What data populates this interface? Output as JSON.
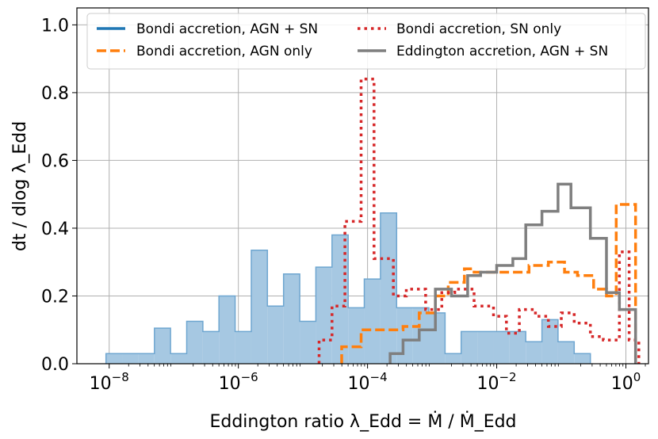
{
  "chart_data": {
    "type": "histogram-step",
    "xlabel": "Eddington ratio λ_Edd = Ṁ / Ṁ_Edd",
    "ylabel": "dt / dlog λ_Edd",
    "xscale": "log",
    "xlim_log10": [
      -8.5,
      0.35
    ],
    "ylim": [
      0,
      1.05
    ],
    "grid": true,
    "legend": "top",
    "x_ticks": [
      {
        "log10": -8,
        "base": "10",
        "exp": "−8"
      },
      {
        "log10": -6,
        "base": "10",
        "exp": "−6"
      },
      {
        "log10": -4,
        "base": "10",
        "exp": "−4"
      },
      {
        "log10": -2,
        "base": "10",
        "exp": "−2"
      },
      {
        "log10": 0,
        "base": "10",
        "exp": "0"
      }
    ],
    "y_ticks": [
      "0.0",
      "0.2",
      "0.4",
      "0.6",
      "0.8",
      "1.0"
    ],
    "y_tick_values": [
      0,
      0.2,
      0.4,
      0.6,
      0.8,
      1.0
    ],
    "series": [
      {
        "name": "Bondi accretion, AGN + SN",
        "style": "filled",
        "color": "#1f77b4",
        "fill": "#a6c8e2",
        "edge": "#6ea6d0",
        "bins": [
          [
            -8.05,
            -7.8,
            0.03
          ],
          [
            -7.8,
            -7.55,
            0.03
          ],
          [
            -7.55,
            -7.3,
            0.03
          ],
          [
            -7.3,
            -7.05,
            0.105
          ],
          [
            -7.05,
            -6.8,
            0.03
          ],
          [
            -6.8,
            -6.55,
            0.125
          ],
          [
            -6.55,
            -6.3,
            0.095
          ],
          [
            -6.3,
            -6.05,
            0.2
          ],
          [
            -6.05,
            -5.8,
            0.095
          ],
          [
            -5.8,
            -5.55,
            0.335
          ],
          [
            -5.55,
            -5.3,
            0.17
          ],
          [
            -5.3,
            -5.05,
            0.265
          ],
          [
            -5.05,
            -4.8,
            0.125
          ],
          [
            -4.8,
            -4.55,
            0.285
          ],
          [
            -4.55,
            -4.3,
            0.38
          ],
          [
            -4.3,
            -4.05,
            0.165
          ],
          [
            -4.05,
            -3.8,
            0.25
          ],
          [
            -3.8,
            -3.55,
            0.445
          ],
          [
            -3.55,
            -3.3,
            0.165
          ],
          [
            -3.3,
            -3.05,
            0.165
          ],
          [
            -3.05,
            -2.8,
            0.15
          ],
          [
            -2.8,
            -2.55,
            0.03
          ],
          [
            -2.55,
            -2.3,
            0.095
          ],
          [
            -2.3,
            -2.05,
            0.095
          ],
          [
            -2.05,
            -1.8,
            0.095
          ],
          [
            -1.8,
            -1.55,
            0.095
          ],
          [
            -1.55,
            -1.3,
            0.065
          ],
          [
            -1.3,
            -1.05,
            0.13
          ],
          [
            -1.05,
            -0.8,
            0.065
          ],
          [
            -0.8,
            -0.55,
            0.03
          ]
        ]
      },
      {
        "name": "Bondi accretion, AGN only",
        "style": "dashed",
        "color": "#ff7f0e",
        "bins": [
          [
            -4.4,
            -4.1,
            0.05
          ],
          [
            -4.1,
            -3.8,
            0.1
          ],
          [
            -3.8,
            -3.45,
            0.1
          ],
          [
            -3.45,
            -3.2,
            0.11
          ],
          [
            -3.2,
            -2.95,
            0.15
          ],
          [
            -2.95,
            -2.75,
            0.2
          ],
          [
            -2.75,
            -2.5,
            0.24
          ],
          [
            -2.5,
            -2.35,
            0.28
          ],
          [
            -2.35,
            -1.9,
            0.27
          ],
          [
            -1.9,
            -1.5,
            0.27
          ],
          [
            -1.5,
            -1.2,
            0.29
          ],
          [
            -1.2,
            -0.95,
            0.3
          ],
          [
            -0.95,
            -0.75,
            0.27
          ],
          [
            -0.75,
            -0.5,
            0.26
          ],
          [
            -0.5,
            -0.3,
            0.22
          ],
          [
            -0.3,
            -0.15,
            0.2
          ],
          [
            -0.15,
            0.15,
            0.47
          ]
        ]
      },
      {
        "name": "Bondi accretion, SN only",
        "style": "dotted",
        "color": "#d62728",
        "bins": [
          [
            -4.75,
            -4.55,
            0.07
          ],
          [
            -4.55,
            -4.35,
            0.17
          ],
          [
            -4.35,
            -4.1,
            0.42
          ],
          [
            -4.1,
            -3.9,
            0.84
          ],
          [
            -3.9,
            -3.6,
            0.31
          ],
          [
            -3.6,
            -3.4,
            0.2
          ],
          [
            -3.4,
            -3.1,
            0.22
          ],
          [
            -3.1,
            -2.85,
            0.16
          ],
          [
            -2.85,
            -2.65,
            0.21
          ],
          [
            -2.65,
            -2.35,
            0.22
          ],
          [
            -2.35,
            -2.05,
            0.17
          ],
          [
            -2.05,
            -1.85,
            0.14
          ],
          [
            -1.85,
            -1.65,
            0.09
          ],
          [
            -1.65,
            -1.4,
            0.16
          ],
          [
            -1.4,
            -1.2,
            0.14
          ],
          [
            -1.2,
            -1.0,
            0.11
          ],
          [
            -1.0,
            -0.8,
            0.15
          ],
          [
            -0.8,
            -0.55,
            0.12
          ],
          [
            -0.55,
            -0.35,
            0.08
          ],
          [
            -0.35,
            -0.1,
            0.07
          ],
          [
            -0.1,
            0.05,
            0.33
          ],
          [
            0.05,
            0.2,
            0.07
          ]
        ]
      },
      {
        "name": "Eddington accretion, AGN + SN",
        "style": "solid",
        "color": "#7f7f7f",
        "bins": [
          [
            -3.65,
            -3.45,
            0.03
          ],
          [
            -3.45,
            -3.2,
            0.07
          ],
          [
            -3.2,
            -2.95,
            0.1
          ],
          [
            -2.95,
            -2.7,
            0.22
          ],
          [
            -2.7,
            -2.45,
            0.2
          ],
          [
            -2.45,
            -2.25,
            0.26
          ],
          [
            -2.25,
            -2.0,
            0.27
          ],
          [
            -2.0,
            -1.75,
            0.29
          ],
          [
            -1.75,
            -1.55,
            0.31
          ],
          [
            -1.55,
            -1.3,
            0.41
          ],
          [
            -1.3,
            -1.05,
            0.45
          ],
          [
            -1.05,
            -0.85,
            0.53
          ],
          [
            -0.85,
            -0.55,
            0.46
          ],
          [
            -0.55,
            -0.3,
            0.37
          ],
          [
            -0.3,
            -0.1,
            0.21
          ],
          [
            -0.1,
            0.15,
            0.16
          ]
        ]
      }
    ]
  }
}
